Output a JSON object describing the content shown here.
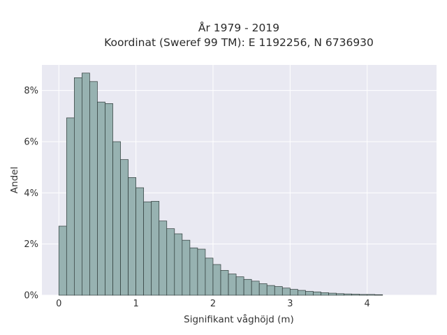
{
  "chart_data": {
    "type": "bar",
    "title": "År 1979 - 2019",
    "subtitle": "Koordinat (Sweref 99 TM): E 1192256, N 6736930",
    "xlabel": "Signifikant våghöjd (m)",
    "ylabel": "Andel",
    "bin_width": 0.1,
    "x": [
      0.05,
      0.15,
      0.25,
      0.35,
      0.45,
      0.55,
      0.65,
      0.75,
      0.85,
      0.95,
      1.05,
      1.15,
      1.25,
      1.35,
      1.45,
      1.55,
      1.65,
      1.75,
      1.85,
      1.95,
      2.05,
      2.15,
      2.25,
      2.35,
      2.45,
      2.55,
      2.65,
      2.75,
      2.85,
      2.95,
      3.05,
      3.15,
      3.25,
      3.35,
      3.45,
      3.55,
      3.65,
      3.75,
      3.85,
      3.95,
      4.05,
      4.15
    ],
    "values": [
      2.7,
      6.93,
      8.5,
      8.68,
      8.35,
      7.55,
      7.49,
      6.0,
      5.3,
      4.6,
      4.2,
      3.65,
      3.67,
      2.9,
      2.6,
      2.4,
      2.15,
      1.85,
      1.8,
      1.45,
      1.2,
      0.97,
      0.83,
      0.72,
      0.62,
      0.55,
      0.45,
      0.38,
      0.34,
      0.28,
      0.23,
      0.19,
      0.15,
      0.13,
      0.1,
      0.08,
      0.06,
      0.05,
      0.04,
      0.03,
      0.03,
      0.02
    ],
    "x_ticks": [
      0,
      1,
      2,
      3,
      4
    ],
    "x_tick_labels": [
      "0",
      "1",
      "2",
      "3",
      "4"
    ],
    "y_ticks": [
      0,
      2,
      4,
      6,
      8
    ],
    "y_tick_labels": [
      "0%",
      "2%",
      "4%",
      "6%",
      "8%"
    ],
    "xlim": [
      -0.22,
      4.9
    ],
    "ylim": [
      0,
      9.0
    ],
    "grid": true,
    "colors": {
      "bar_fill": "#97b2b1",
      "bar_stroke": "#2e3a39",
      "plot_bg": "#e9e9f2",
      "grid": "#ffffff"
    }
  }
}
